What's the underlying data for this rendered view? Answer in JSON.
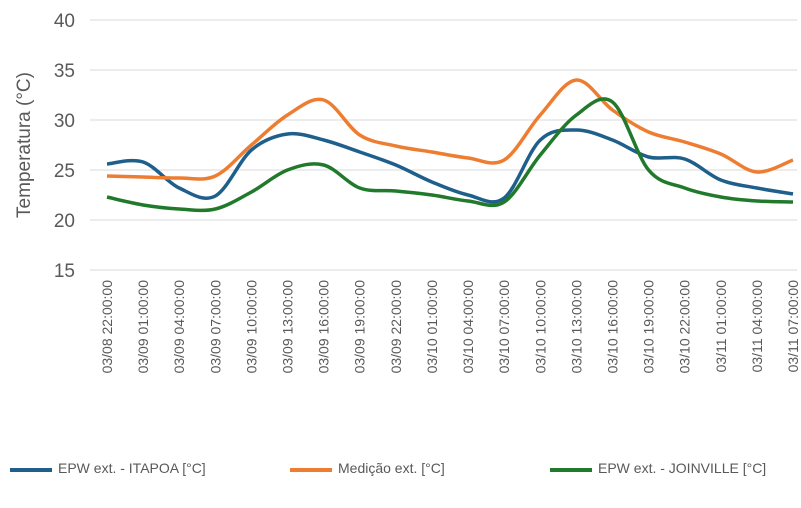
{
  "chart_data": {
    "type": "line",
    "y_label": "Temperatura (°C)",
    "categories": [
      "03/08  22:00:00",
      "03/09  01:00:00",
      "03/09  04:00:00",
      "03/09  07:00:00",
      "03/09  10:00:00",
      "03/09  13:00:00",
      "03/09  16:00:00",
      "03/09  19:00:00",
      "03/09  22:00:00",
      "03/10  01:00:00",
      "03/10  04:00:00",
      "03/10  07:00:00",
      "03/10  10:00:00",
      "03/10  13:00:00",
      "03/10  16:00:00",
      "03/10  19:00:00",
      "03/10  22:00:00",
      "03/11  01:00:00",
      "03/11  04:00:00",
      "03/11  07:00:00"
    ],
    "series": [
      {
        "name": "EPW ext. - ITAPOA [°C]",
        "color": "#1f5f8b",
        "values": [
          25.6,
          25.8,
          23.2,
          22.4,
          27.0,
          28.6,
          28.0,
          26.8,
          25.5,
          23.8,
          22.5,
          22.2,
          28.0,
          29.0,
          28.0,
          26.3,
          26.1,
          24.0,
          23.2,
          22.6
        ]
      },
      {
        "name": "Medição ext. [°C]",
        "color": "#ed7d31",
        "values": [
          24.4,
          24.3,
          24.2,
          24.4,
          27.5,
          30.5,
          32.0,
          28.5,
          27.4,
          26.8,
          26.2,
          26.0,
          30.5,
          34.0,
          31.0,
          28.8,
          27.8,
          26.6,
          24.8,
          26.0
        ]
      },
      {
        "name": "EPW ext. - JOINVILLE [°C]",
        "color": "#217a2b",
        "values": [
          22.3,
          21.5,
          21.1,
          21.1,
          22.8,
          25.0,
          25.5,
          23.2,
          22.9,
          22.5,
          21.9,
          21.8,
          26.5,
          30.5,
          31.8,
          25.0,
          23.2,
          22.3,
          21.9,
          21.8
        ]
      }
    ],
    "ylim": [
      15,
      40
    ],
    "yticks": [
      15,
      20,
      25,
      30,
      35,
      40
    ],
    "grid": true,
    "legend": "bottom"
  }
}
